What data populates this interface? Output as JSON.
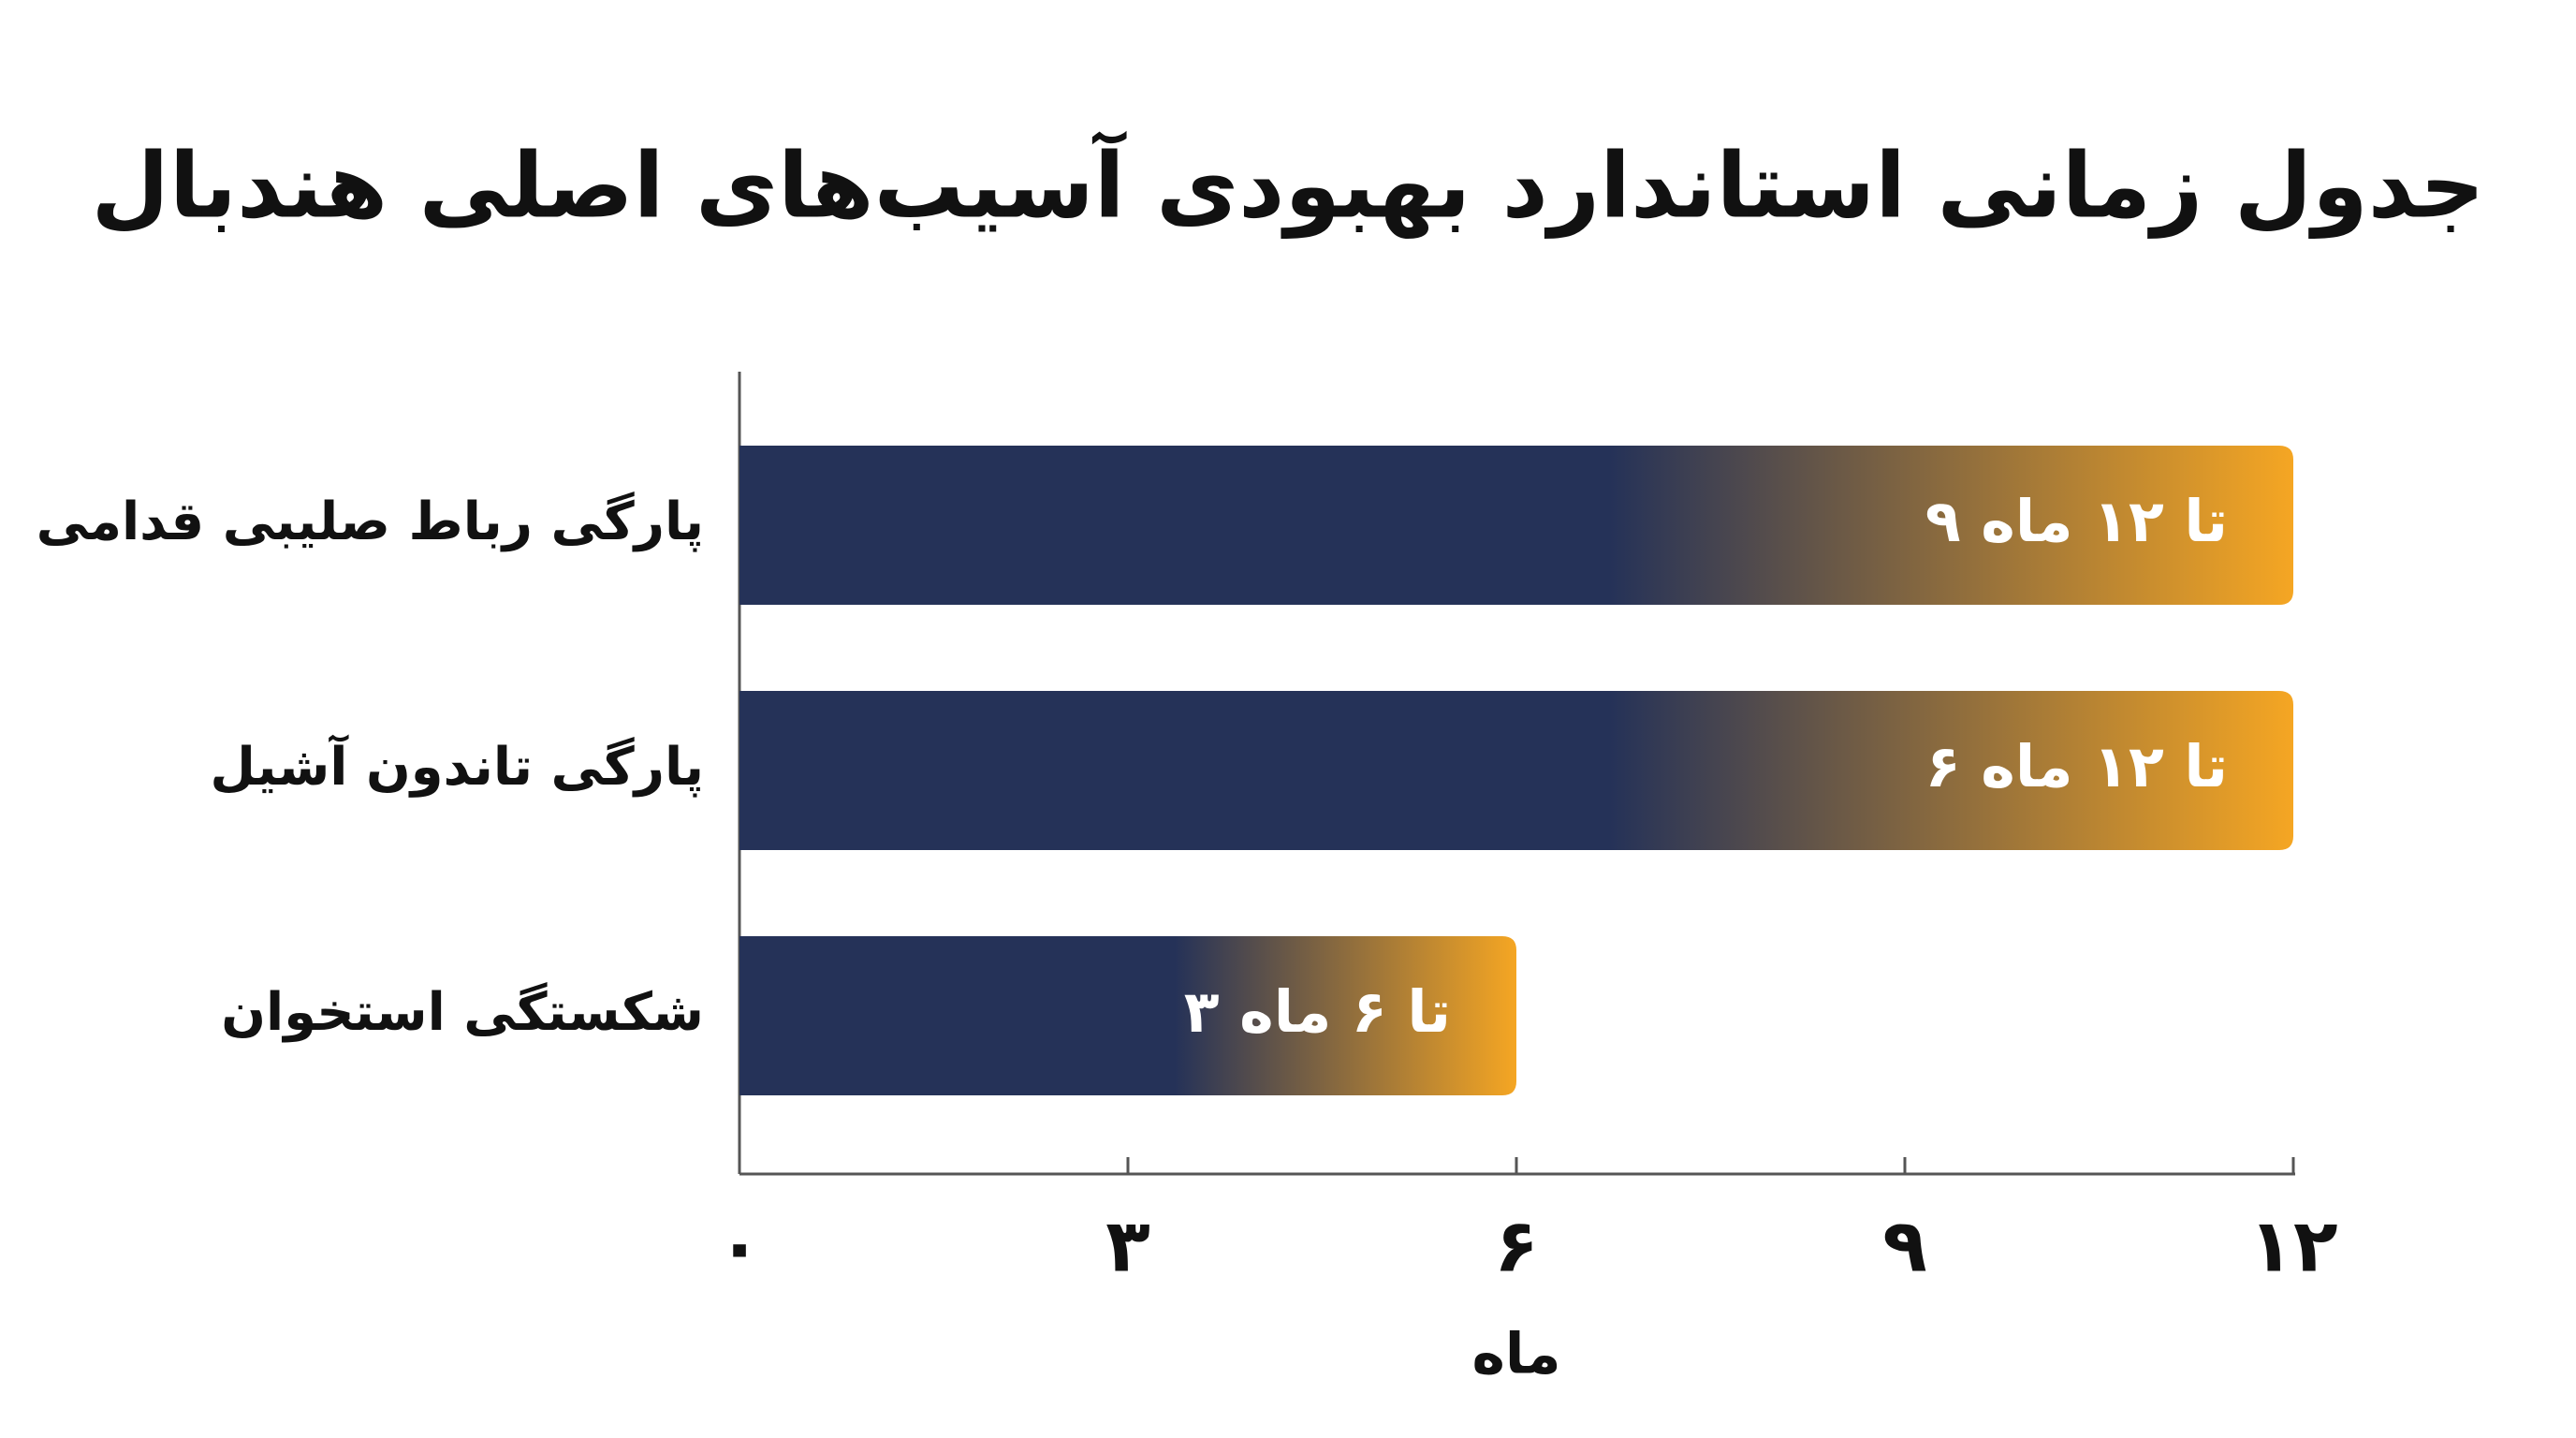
{
  "chart_data": {
    "type": "hbar",
    "title": "جدول زمانی استاندارد بهبودی آسیب‌های اصلی هندبال",
    "categories": [
      "پارگی رباط صلیبی قدامی",
      "پارگی تاندون آشیل",
      "شکستگی استخوان"
    ],
    "values": [
      12,
      12,
      6
    ],
    "value_labels": [
      "۹ تا ۱۲ ماه",
      "۶ تا ۱۲ ماه",
      "۳ تا ۶ ماه"
    ],
    "colors": [
      "#253258",
      "#f5a623"
    ],
    "xlim": [
      0,
      12
    ],
    "xticks": [
      {
        "value": 0,
        "label": "۰"
      },
      {
        "value": 3,
        "label": "۳"
      },
      {
        "value": 6,
        "label": "۶"
      },
      {
        "value": 9,
        "label": "۹"
      },
      {
        "value": 12,
        "label": "۱۲"
      }
    ],
    "xlabel": "ماه",
    "grid": false
  }
}
